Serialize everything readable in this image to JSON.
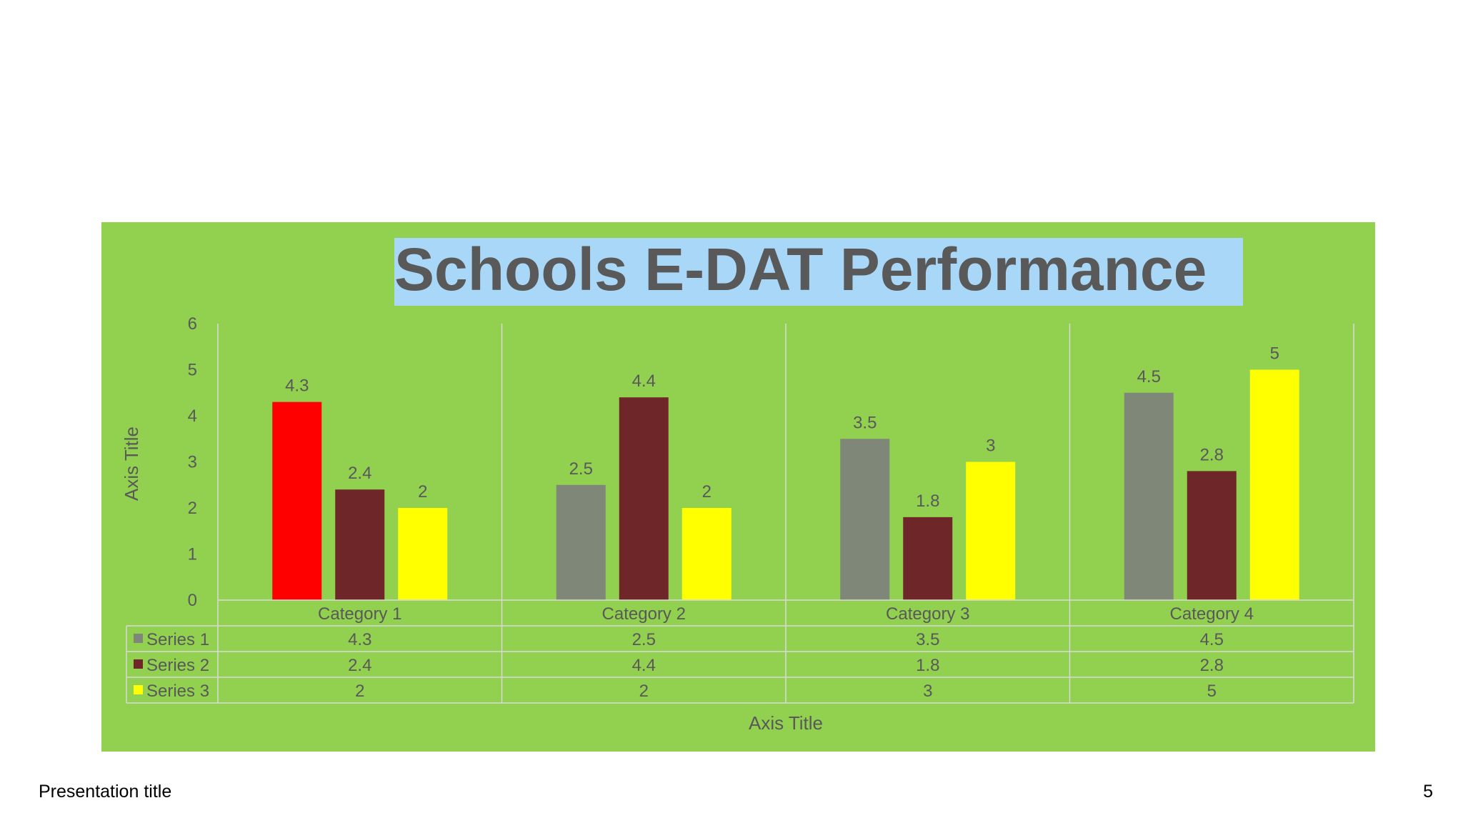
{
  "footer": {
    "presentation_title": "Presentation title",
    "page_number": "5"
  },
  "colors": {
    "chart_background": "#92d050",
    "title_highlight": "#a9d7f8",
    "text": "#595959",
    "grid": "#d9d9d9",
    "series_1_bar": "#7f8778",
    "series_1_highlight_bar": "#ff0000",
    "series_2": "#6e2629",
    "series_3": "#ffff00"
  },
  "chart_data": {
    "type": "bar",
    "title": "Schools E-DAT Performance",
    "xlabel": "Axis Title",
    "ylabel": "Axis Title",
    "ylim": [
      0,
      6
    ],
    "yticks": [
      "0",
      "1",
      "2",
      "3",
      "4",
      "5",
      "6"
    ],
    "categories": [
      "Category 1",
      "Category 2",
      "Category 3",
      "Category 4"
    ],
    "series": [
      {
        "name": "Series 1",
        "values": [
          4.3,
          2.5,
          3.5,
          4.5
        ],
        "color": "#7f8778",
        "point_colors": [
          "#ff0000",
          null,
          null,
          null
        ]
      },
      {
        "name": "Series 2",
        "values": [
          2.4,
          4.4,
          1.8,
          2.8
        ],
        "color": "#6e2629"
      },
      {
        "name": "Series 3",
        "values": [
          2,
          2,
          3,
          5
        ],
        "color": "#ffff00"
      }
    ],
    "data_labels": [
      [
        "4.3",
        "2.5",
        "3.5",
        "4.5"
      ],
      [
        "2.4",
        "4.4",
        "1.8",
        "2.8"
      ],
      [
        "2",
        "2",
        "3",
        "5"
      ]
    ],
    "data_table": true,
    "grid": "vertical category dividers"
  }
}
